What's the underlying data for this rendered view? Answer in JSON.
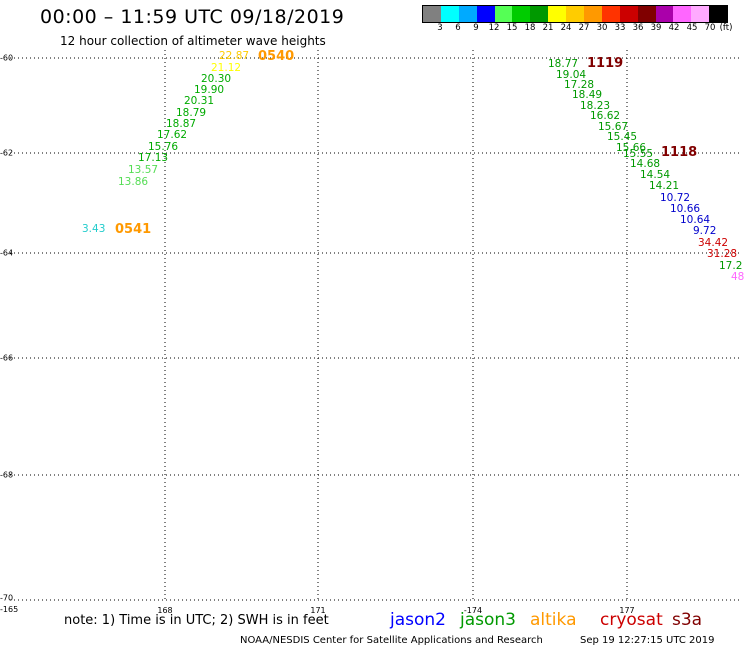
{
  "title": "00:00  –  11:59  UTC  09/18/2019",
  "subtitle": "12 hour collection of altimeter wave heights",
  "legend": {
    "colors": [
      "#808080",
      "#00ffff",
      "#00aaff",
      "#0000ff",
      "#55ff55",
      "#00cc00",
      "#009900",
      "#ffff00",
      "#ffcc00",
      "#ff9900",
      "#ff3300",
      "#cc0000",
      "#800000",
      "#aa00aa",
      "#ff66ff",
      "#ffaaff",
      "#000000"
    ],
    "labels": [
      "3",
      "6",
      "9",
      "12",
      "15",
      "18",
      "21",
      "24",
      "27",
      "30",
      "33",
      "36",
      "39",
      "42",
      "45",
      "70",
      "(ft)"
    ]
  },
  "lat_labels": [
    "-60",
    "-62",
    "-64",
    "-66",
    "-68",
    "-70"
  ],
  "lon_labels": [
    "-165",
    "168",
    "171",
    "-174",
    "177"
  ],
  "tracks": [
    {
      "color": "#ffcc00",
      "items": [
        "22.87"
      ]
    },
    {
      "color": "#ffff00",
      "items": [
        "21.12"
      ]
    },
    {
      "color": "#00aa00",
      "items": [
        "20.30",
        "19.90",
        "20.31",
        "18.79",
        "18.87",
        "17.62",
        "15.76",
        "17.13"
      ]
    },
    {
      "color": "#55dd55",
      "items": [
        "13.57",
        "13.86"
      ]
    },
    {
      "color": "#22cccc",
      "items": [
        "3.43"
      ]
    },
    {
      "color": "#009900",
      "items": [
        "18.77",
        "19.04",
        "17.28",
        "18.49",
        "18.23",
        "16.62",
        "15.67",
        "15.45",
        "15.66",
        "15.55",
        "14.68",
        "14.54",
        "14.21"
      ]
    },
    {
      "color": "#0000cc",
      "items": [
        "10.72",
        "10.66",
        "10.64",
        "9.72"
      ]
    },
    {
      "color": "#cc0000",
      "items": [
        "34.42",
        "31.28"
      ]
    },
    {
      "color": "#009900",
      "items": [
        "17.2"
      ]
    },
    {
      "color": "#ff66ff",
      "items": [
        "48"
      ]
    }
  ],
  "pass_times": [
    {
      "label": "0540",
      "color": "#ff9900"
    },
    {
      "label": "0541",
      "color": "#ff9900"
    },
    {
      "label": "1119",
      "color": "#800000"
    },
    {
      "label": "1118",
      "color": "#800000"
    }
  ],
  "note": "note:  1)  Time  is  in  UTC;  2)  SWH  is  in  feet",
  "satellites": [
    {
      "name": "jason2",
      "color": "#0000ff"
    },
    {
      "name": "jason3",
      "color": "#009900"
    },
    {
      "name": "altika",
      "color": "#ff9900"
    },
    {
      "name": "cryosat",
      "color": "#cc0000"
    },
    {
      "name": "s3a",
      "color": "#800000"
    }
  ],
  "footer": "NOAA/NESDIS Center for Satellite Applications and Research",
  "footer_time": "Sep 19 12:27:15 UTC 2019"
}
